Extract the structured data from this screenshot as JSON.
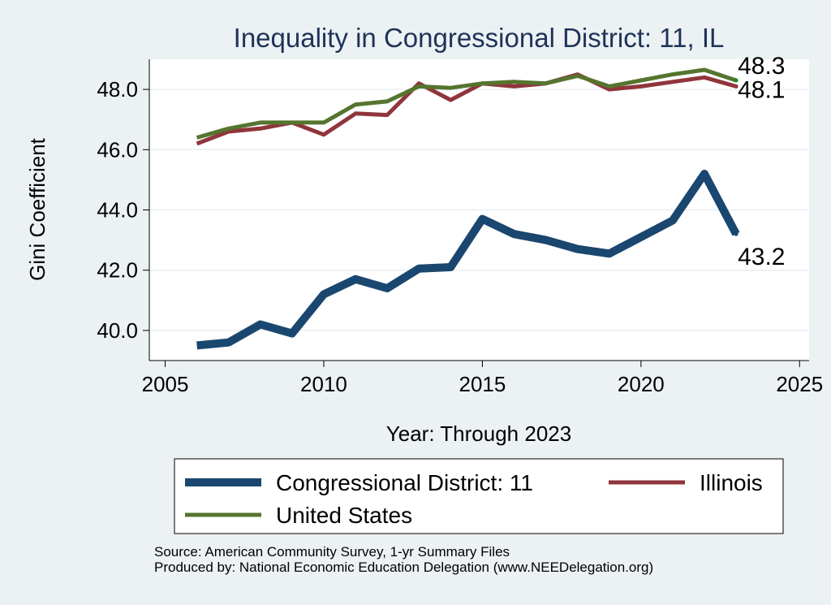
{
  "chart_data": {
    "type": "line",
    "title": "Inequality in Congressional District:  11, IL",
    "xlabel": "Year: Through 2023",
    "ylabel": "Gini Coefficient",
    "xlim": [
      2004.5,
      2025.3
    ],
    "ylim": [
      39.0,
      49.0
    ],
    "xticks": [
      2005,
      2010,
      2015,
      2020,
      2025
    ],
    "xtick_labels": [
      "2005",
      "2010",
      "2015",
      "2020",
      "2025"
    ],
    "yticks": [
      40,
      42,
      44,
      46,
      48
    ],
    "ytick_labels": [
      "40.0",
      "42.0",
      "44.0",
      "46.0",
      "48.0"
    ],
    "grid": true,
    "legend_position": "bottom",
    "x": [
      2006,
      2007,
      2008,
      2009,
      2010,
      2011,
      2012,
      2013,
      2014,
      2015,
      2016,
      2017,
      2018,
      2019,
      2020,
      2021,
      2022,
      2023
    ],
    "series": [
      {
        "name": "Congressional District:  11",
        "color": "#1a476f",
        "values": [
          39.5,
          39.6,
          40.2,
          39.9,
          41.2,
          41.7,
          41.4,
          42.05,
          42.1,
          43.7,
          43.2,
          43.0,
          42.7,
          42.55,
          43.1,
          43.65,
          45.2,
          43.2
        ]
      },
      {
        "name": "Illinois",
        "color": "#90353b",
        "values": [
          46.2,
          46.6,
          46.7,
          46.9,
          46.5,
          47.2,
          47.15,
          48.2,
          47.65,
          48.2,
          48.1,
          48.2,
          48.5,
          48.0,
          48.1,
          48.25,
          48.4,
          48.1
        ]
      },
      {
        "name": "United States",
        "color": "#55752f",
        "values": [
          46.4,
          46.7,
          46.9,
          46.9,
          46.9,
          47.5,
          47.6,
          48.1,
          48.05,
          48.2,
          48.25,
          48.2,
          48.45,
          48.1,
          48.3,
          48.5,
          48.65,
          48.3
        ]
      }
    ],
    "end_labels": [
      {
        "series": "United States",
        "text": "48.3"
      },
      {
        "series": "Illinois",
        "text": "48.1"
      },
      {
        "series": "Congressional District:  11",
        "text": "43.2"
      }
    ]
  },
  "footer": {
    "source": "Source: American Community Survey, 1-yr Summary Files",
    "produced_by": "Produced by: National Economic Education Delegation (www.NEEDelegation.org)"
  }
}
